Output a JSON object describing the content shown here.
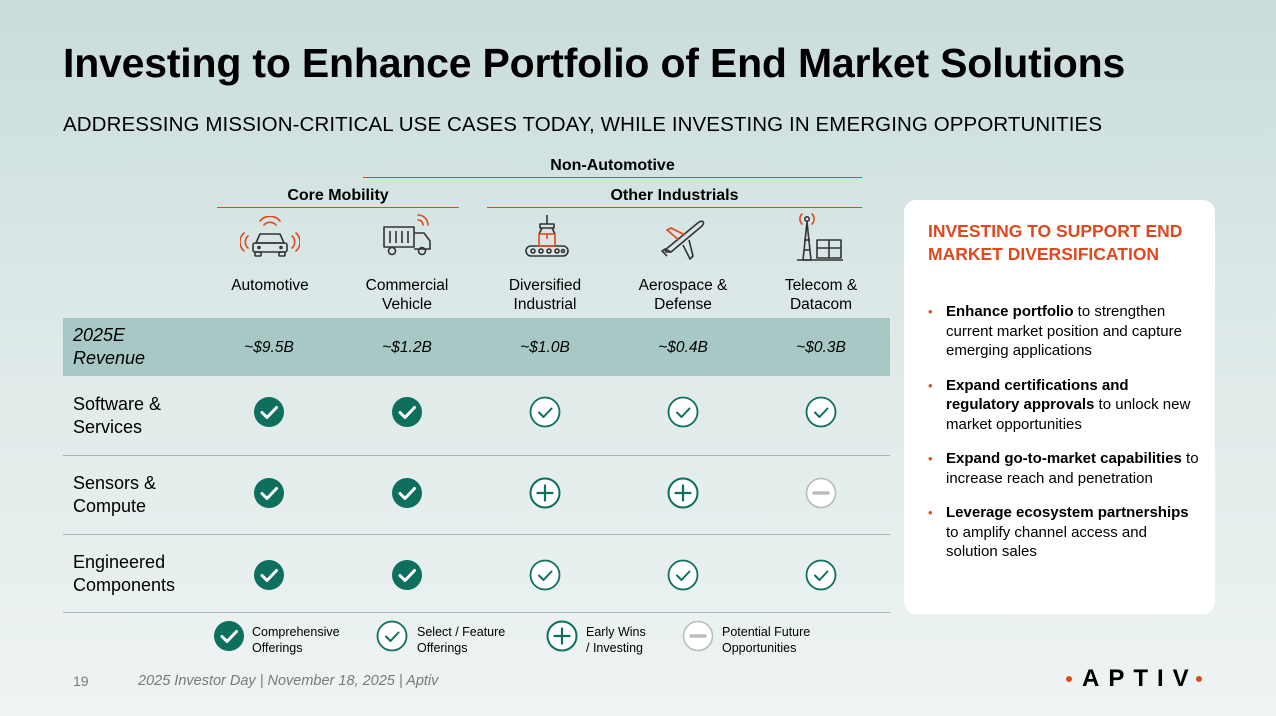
{
  "title": "Investing to Enhance Portfolio of End Market Solutions",
  "subtitle": "ADDRESSING MISSION-CRITICAL USE CASES TODAY, WHILE INVESTING IN EMERGING OPPORTUNITIES",
  "groups": {
    "non_automotive": "Non-Automotive",
    "core_mobility": "Core Mobility",
    "other_industrials": "Other Industrials"
  },
  "accent_color": "#e0481d",
  "status_colors": {
    "filled": "#0e6f5f",
    "outline": "#0e6f5f",
    "future": "#b9bdbd",
    "revenue_band": "#a8c8c5"
  },
  "segments": [
    {
      "label": "Automotive",
      "icon": "connected-car-icon",
      "revenue": "~$9.5B",
      "marks": [
        "comprehensive",
        "comprehensive",
        "comprehensive"
      ]
    },
    {
      "label": "Commercial Vehicle",
      "icon": "truck-icon",
      "revenue": "~$1.2B",
      "marks": [
        "comprehensive",
        "comprehensive",
        "comprehensive"
      ]
    },
    {
      "label": "Diversified Industrial",
      "icon": "conveyor-robot-icon",
      "revenue": "~$1.0B",
      "marks": [
        "select",
        "early",
        "select"
      ]
    },
    {
      "label": "Aerospace & Defense",
      "icon": "airplane-icon",
      "revenue": "~$0.4B",
      "marks": [
        "select",
        "early",
        "select"
      ]
    },
    {
      "label": "Telecom & Datacom",
      "icon": "telecom-tower-icon",
      "revenue": "~$0.3B",
      "marks": [
        "select",
        "future",
        "select"
      ]
    }
  ],
  "rows": [
    {
      "label": "2025E Revenue"
    },
    {
      "label": "Software & Services"
    },
    {
      "label": "Sensors & Compute"
    },
    {
      "label": "Engineered Components"
    }
  ],
  "legend": [
    {
      "type": "comprehensive",
      "label": "Comprehensive\nOfferings"
    },
    {
      "type": "select",
      "label": "Select / Feature\nOfferings"
    },
    {
      "type": "early",
      "label": "Early Wins\n/ Investing"
    },
    {
      "type": "future",
      "label": "Potential Future\nOpportunities"
    }
  ],
  "card": {
    "title": "INVESTING TO SUPPORT END MARKET DIVERSIFICATION",
    "bullets": [
      {
        "bold": "Enhance portfolio",
        "text": " to strengthen current market position and capture emerging applications"
      },
      {
        "bold": "Expand certifications and regulatory approvals",
        "text": " to unlock new market opportunities"
      },
      {
        "bold": "Expand go-to-market capabilities",
        "text": " to increase reach and penetration"
      },
      {
        "bold": "Leverage ecosystem partnerships",
        "text": " to amplify channel access and solution sales"
      }
    ]
  },
  "footer": {
    "page_number": "19",
    "text": "2025 Investor Day | November 18, 2025 | Aptiv",
    "logo": "APTIV"
  }
}
